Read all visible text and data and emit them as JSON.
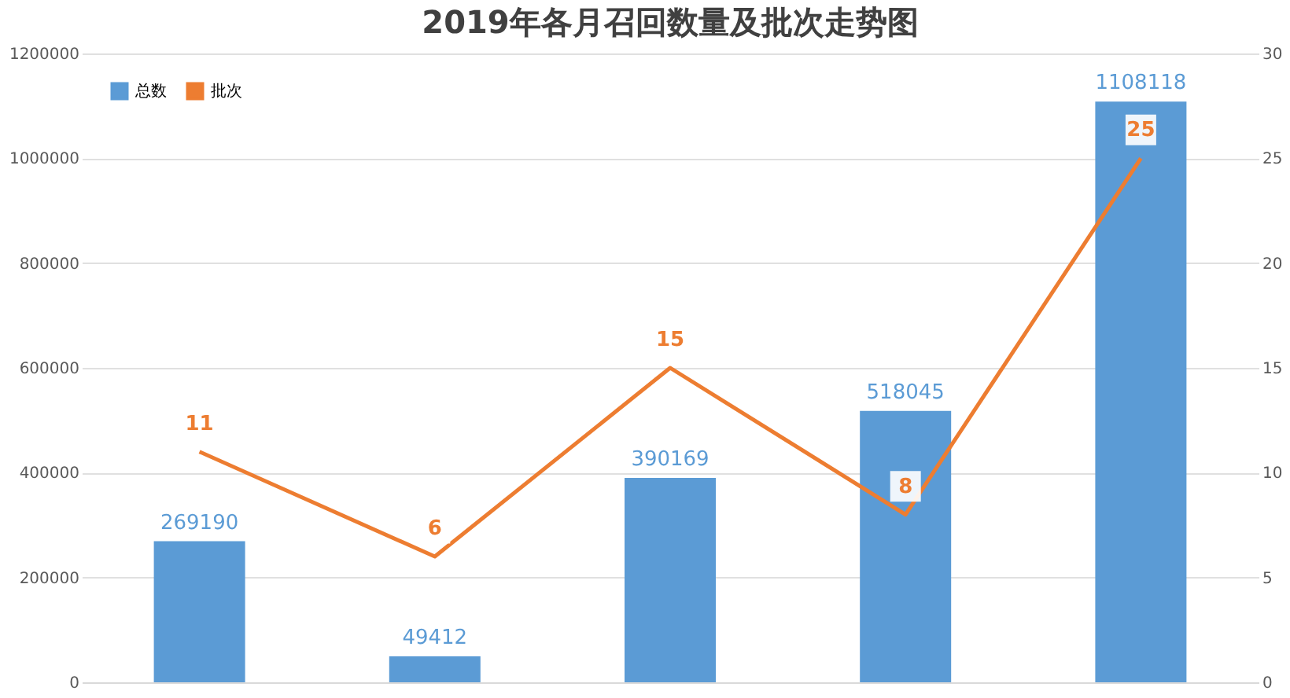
{
  "chart_data": {
    "type": "bar",
    "title": "2019年各月召回数量及批次走势图",
    "categories": [
      null,
      null,
      null,
      null,
      null
    ],
    "series": [
      {
        "name": "总数",
        "color": "#5b9bd5",
        "values": [
          269190,
          49412,
          390169,
          518045,
          1108118
        ]
      },
      {
        "name": "批次",
        "type": "line",
        "axis": "y2",
        "color": "#ed7d31",
        "values": [
          11,
          6,
          15,
          8,
          25
        ]
      }
    ],
    "ylim": [
      0,
      1200000
    ],
    "yticks": [
      0,
      200000,
      400000,
      600000,
      800000,
      1000000,
      1200000
    ],
    "y2lim": [
      0,
      30
    ],
    "y2ticks": [
      0,
      5,
      10,
      15,
      20,
      25,
      30
    ],
    "grid": "y",
    "legend": "top left",
    "data_labels": true,
    "marker": "none",
    "line_style": "solid"
  }
}
